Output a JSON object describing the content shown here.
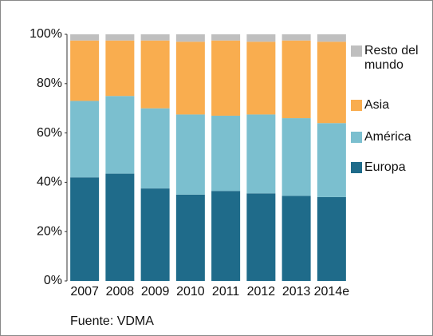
{
  "chart_data": {
    "type": "stacked_bar",
    "categories": [
      "2007",
      "2008",
      "2009",
      "2010",
      "2011",
      "2012",
      "2013",
      "2014e"
    ],
    "series": [
      {
        "name": "Europa",
        "color": "#1f6b8a",
        "values": [
          42,
          43.5,
          37.5,
          35,
          36.5,
          35.5,
          34.5,
          34
        ]
      },
      {
        "name": "América",
        "color": "#7bbfcf",
        "values": [
          31,
          31.5,
          32.5,
          32.5,
          30.5,
          32,
          31.5,
          30
        ]
      },
      {
        "name": "Asia",
        "color": "#f9ad4f",
        "values": [
          24.5,
          22.5,
          27.5,
          29.5,
          30.5,
          29.5,
          31.5,
          33
        ]
      },
      {
        "name": "Resto del mundo",
        "color": "#bfbfbf",
        "values": [
          2.5,
          2.5,
          2.5,
          3,
          2.5,
          3,
          2.5,
          3
        ]
      }
    ],
    "ylim": [
      0,
      100
    ],
    "yticks": [
      {
        "value": 0,
        "label": "0%"
      },
      {
        "value": 20,
        "label": "20%"
      },
      {
        "value": 40,
        "label": "40%"
      },
      {
        "value": 60,
        "label": "60%"
      },
      {
        "value": 80,
        "label": "80%"
      },
      {
        "value": 100,
        "label": "100%"
      }
    ],
    "source": "Fuente: VDMA"
  }
}
